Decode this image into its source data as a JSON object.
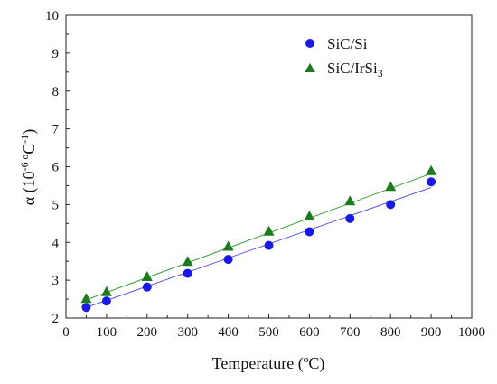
{
  "chart_data": {
    "type": "scatter",
    "title": "",
    "xlabel": "Temperature (ºC)",
    "ylabel": {
      "base": "α (10",
      "exp": "-6 ",
      "unit": "ºC",
      "unit_exp": "-1",
      "close": ")"
    },
    "xlim": [
      0,
      1000
    ],
    "ylim": [
      2,
      10
    ],
    "x_ticks": [
      0,
      100,
      200,
      300,
      400,
      500,
      600,
      700,
      800,
      900,
      1000
    ],
    "y_ticks": [
      2,
      3,
      4,
      5,
      6,
      7,
      8,
      9,
      10
    ],
    "grid": false,
    "legend_position": "top-right",
    "series": [
      {
        "name": "SiC/Si",
        "legend_base": "SiC/Si",
        "legend_sub": "",
        "marker": "circle",
        "color": "#1a1ae6",
        "line_color": "#5a5ae8",
        "x": [
          50,
          100,
          200,
          300,
          400,
          500,
          600,
          700,
          800,
          900
        ],
        "y": [
          2.28,
          2.45,
          2.82,
          3.18,
          3.55,
          3.92,
          4.28,
          4.63,
          5.0,
          5.6
        ],
        "fit": {
          "x": [
            50,
            900
          ],
          "y": [
            2.28,
            5.45
          ]
        }
      },
      {
        "name": "SiC/IrSi3",
        "legend_base": "SiC/IrSi",
        "legend_sub": "3",
        "marker": "triangle",
        "color": "#1e7a1e",
        "line_color": "#3aa03a",
        "x": [
          50,
          100,
          200,
          300,
          400,
          500,
          600,
          700,
          800,
          900
        ],
        "y": [
          2.52,
          2.7,
          3.1,
          3.5,
          3.9,
          4.3,
          4.7,
          5.1,
          5.48,
          5.9
        ],
        "fit": {
          "x": [
            50,
            900
          ],
          "y": [
            2.48,
            5.82
          ]
        }
      }
    ]
  }
}
